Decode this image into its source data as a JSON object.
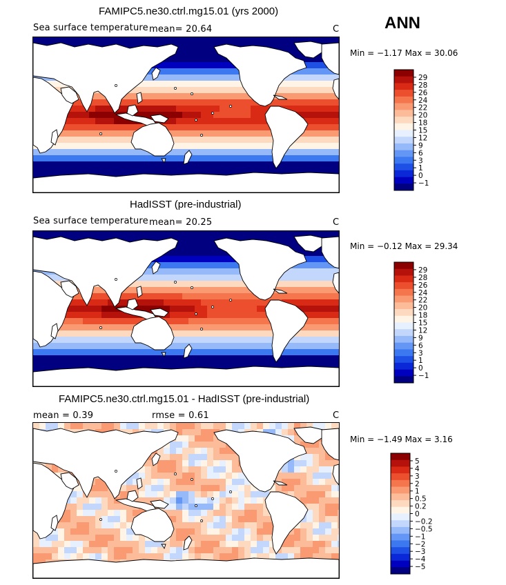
{
  "season": "ANN",
  "panels": [
    {
      "title": "FAMIPC5.ne30.ctrl.mg15.01 (yrs 2000)",
      "left_label": "Sea surface temperature",
      "mean_text": "mean=  20.64",
      "units": "C",
      "min_max_text": "Min =   −1.17 Max =   30.06",
      "field": "model",
      "colorbar": {
        "colors": [
          "#000080",
          "#0000bf",
          "#0a28d8",
          "#1e50e6",
          "#3c78f0",
          "#6496f5",
          "#96b9fa",
          "#c3d7fc",
          "#e6f0ff",
          "#fff4e6",
          "#fdd9bf",
          "#fcbc99",
          "#f99a73",
          "#f5754d",
          "#ec4f2e",
          "#d82a14",
          "#b4120a",
          "#8b0000"
        ],
        "labels": [
          "29",
          "28",
          "26",
          "24",
          "22",
          "20",
          "18",
          "15",
          "12",
          "9",
          "6",
          "3",
          "1",
          "0",
          "−1"
        ]
      }
    },
    {
      "title": "HadISST (pre-industrial)",
      "left_label": "Sea surface temperature",
      "mean_text": "mean=  20.25",
      "units": "C",
      "min_max_text": "Min =   −0.12 Max =   29.34",
      "field": "obs",
      "colorbar": {
        "colors": [
          "#000080",
          "#0000bf",
          "#0a28d8",
          "#1e50e6",
          "#3c78f0",
          "#6496f5",
          "#96b9fa",
          "#c3d7fc",
          "#e6f0ff",
          "#fff4e6",
          "#fdd9bf",
          "#fcbc99",
          "#f99a73",
          "#f5754d",
          "#ec4f2e",
          "#d82a14",
          "#b4120a",
          "#8b0000"
        ],
        "labels": [
          "29",
          "28",
          "26",
          "24",
          "22",
          "20",
          "18",
          "15",
          "12",
          "9",
          "6",
          "3",
          "1",
          "0",
          "−1"
        ]
      }
    },
    {
      "title": "FAMIPC5.ne30.ctrl.mg15.01 - HadISST (pre-industrial)",
      "left_label": "mean =    0.39",
      "mean_text": "rmse =    0.61",
      "units": "C",
      "min_max_text": "Min =   −1.49 Max =    3.16",
      "field": "diff",
      "colorbar": {
        "colors": [
          "#000080",
          "#0000bf",
          "#0a28d8",
          "#1e50e6",
          "#3c78f0",
          "#6496f5",
          "#96b9fa",
          "#c3d7fc",
          "#e6f0ff",
          "#fff4e6",
          "#fdd9bf",
          "#fcbc99",
          "#f99a73",
          "#f5754d",
          "#ec4f2e",
          "#d82a14",
          "#b4120a",
          "#8b0000"
        ],
        "labels": [
          "5",
          "4",
          "3",
          "2",
          "1",
          "0.5",
          "0.2",
          "0",
          "−0.2",
          "−0.5",
          "−1",
          "−2",
          "−3",
          "−4",
          "−5"
        ]
      }
    }
  ],
  "colors": {
    "land": "#ffffff",
    "coast": "#000000",
    "frame": "#000000"
  }
}
